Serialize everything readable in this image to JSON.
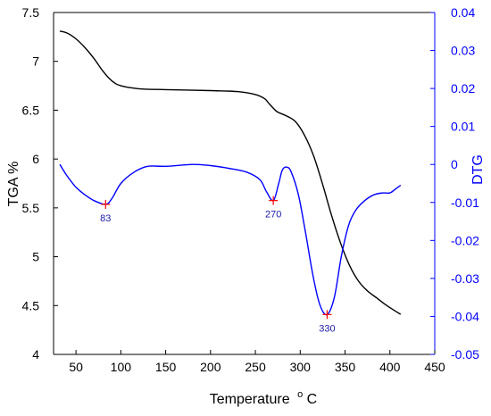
{
  "chart_data": {
    "type": "line",
    "xlabel": "Temperature",
    "xlabel_unit_sup": "o",
    "xlabel_unit": "C",
    "ylabel_left": "TGA %",
    "ylabel_right": "DTG",
    "xlim": [
      25,
      450
    ],
    "ylim_left": [
      4,
      7.5
    ],
    "ylim_right": [
      -0.05,
      0.04
    ],
    "x_ticks": [
      50,
      100,
      150,
      200,
      250,
      300,
      350,
      400,
      450
    ],
    "y_left_ticks": [
      "4",
      "4.5",
      "5",
      "5.5",
      "6",
      "6.5",
      "7",
      "7.5"
    ],
    "y_right_ticks": [
      "0.04",
      "0.03",
      "0.02",
      "0.01",
      "0",
      "-0.01",
      "-0.02",
      "-0.03",
      "-0.04",
      "-0.05"
    ],
    "grid": false,
    "series": [
      {
        "name": "TGA",
        "axis": "left",
        "color": "#000000",
        "points": [
          [
            32,
            7.31
          ],
          [
            40,
            7.29
          ],
          [
            50,
            7.23
          ],
          [
            60,
            7.14
          ],
          [
            70,
            7.03
          ],
          [
            80,
            6.9
          ],
          [
            90,
            6.8
          ],
          [
            100,
            6.75
          ],
          [
            120,
            6.72
          ],
          [
            150,
            6.71
          ],
          [
            200,
            6.7
          ],
          [
            230,
            6.69
          ],
          [
            250,
            6.66
          ],
          [
            260,
            6.62
          ],
          [
            265,
            6.57
          ],
          [
            270,
            6.52
          ],
          [
            275,
            6.48
          ],
          [
            285,
            6.44
          ],
          [
            295,
            6.38
          ],
          [
            305,
            6.24
          ],
          [
            315,
            6.03
          ],
          [
            325,
            5.74
          ],
          [
            335,
            5.42
          ],
          [
            345,
            5.14
          ],
          [
            355,
            4.91
          ],
          [
            365,
            4.75
          ],
          [
            375,
            4.65
          ],
          [
            385,
            4.58
          ],
          [
            395,
            4.51
          ],
          [
            405,
            4.45
          ],
          [
            412,
            4.41
          ]
        ]
      },
      {
        "name": "DTG",
        "axis": "right",
        "color": "#0000ff",
        "points": [
          [
            32,
            0
          ],
          [
            40,
            -0.003
          ],
          [
            50,
            -0.006
          ],
          [
            60,
            -0.008
          ],
          [
            70,
            -0.0095
          ],
          [
            83,
            -0.0105
          ],
          [
            90,
            -0.009
          ],
          [
            100,
            -0.005
          ],
          [
            115,
            -0.002
          ],
          [
            130,
            -0.0005
          ],
          [
            150,
            -0.0005
          ],
          [
            180,
            0
          ],
          [
            200,
            -0.0003
          ],
          [
            220,
            -0.001
          ],
          [
            240,
            -0.002
          ],
          [
            255,
            -0.004
          ],
          [
            262,
            -0.007
          ],
          [
            270,
            -0.0095
          ],
          [
            276,
            -0.005
          ],
          [
            280,
            -0.0015
          ],
          [
            285,
            -0.0007
          ],
          [
            290,
            -0.002
          ],
          [
            298,
            -0.008
          ],
          [
            306,
            -0.018
          ],
          [
            314,
            -0.029
          ],
          [
            322,
            -0.037
          ],
          [
            330,
            -0.0395
          ],
          [
            338,
            -0.035
          ],
          [
            346,
            -0.024
          ],
          [
            354,
            -0.016
          ],
          [
            362,
            -0.012
          ],
          [
            372,
            -0.0095
          ],
          [
            382,
            -0.008
          ],
          [
            392,
            -0.0075
          ],
          [
            400,
            -0.0075
          ],
          [
            406,
            -0.0065
          ],
          [
            412,
            -0.0055
          ]
        ]
      }
    ],
    "annotations": [
      {
        "text": "83",
        "x": 83,
        "y": -0.0105
      },
      {
        "text": "270",
        "x": 270,
        "y": -0.0095
      },
      {
        "text": "330",
        "x": 330,
        "y": -0.0395
      }
    ],
    "marker_color": "#ff0000"
  }
}
